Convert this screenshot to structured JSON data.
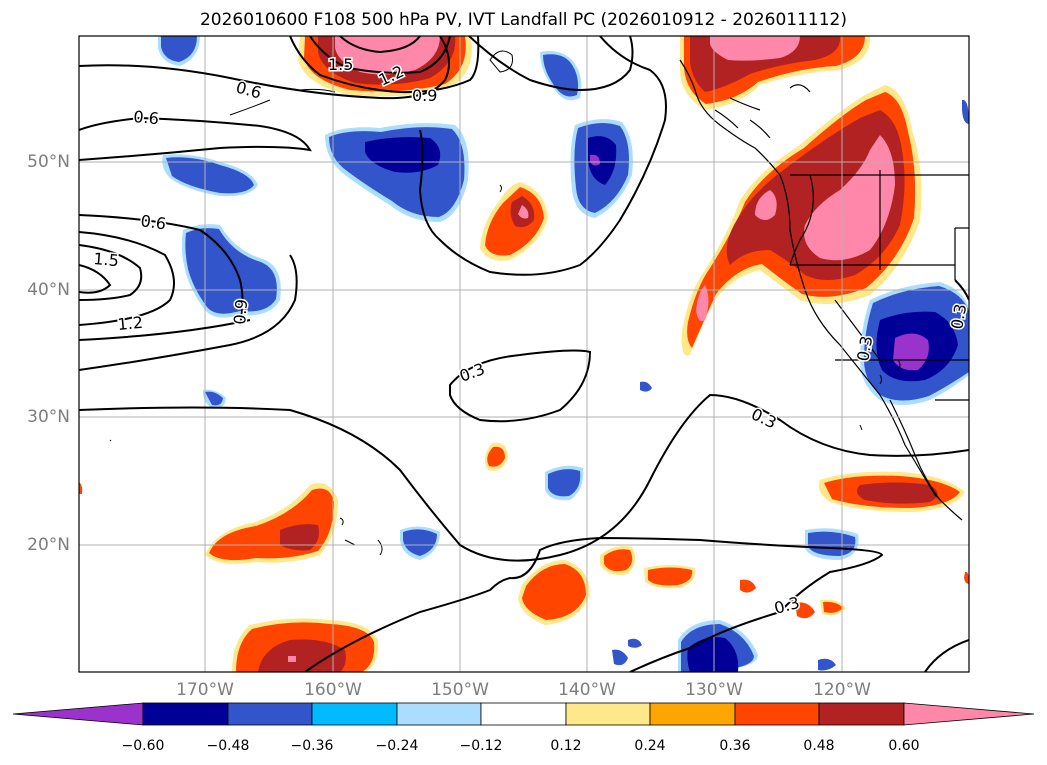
{
  "title": "2026010600 F108 500 hPa PV, IVT Landfall PC (2026010912 - 2026011112)",
  "longitude_labels": [
    "170°W",
    "160°W",
    "150°W",
    "140°W",
    "130°W",
    "120°W"
  ],
  "latitude_labels": [
    "50°N",
    "40°N",
    "30°N",
    "20°N"
  ],
  "colorbar": {
    "tick_labels": [
      "−0.60",
      "−0.48",
      "−0.36",
      "−0.24",
      "−0.12",
      "0.12",
      "0.24",
      "0.36",
      "0.48",
      "0.60"
    ],
    "colors": [
      "#9933cc",
      "#000099",
      "#3355cc",
      "#00bbff",
      "#aaddff",
      "#ffffff",
      "#ffe88a",
      "#ffa500",
      "#ff4500",
      "#b22222",
      "#ff88aa"
    ]
  },
  "contour_labels": [
    "1.5",
    "1.2",
    "0.6",
    "0.9",
    "0.6",
    "0.6",
    "1.5",
    "1.2",
    "0.9",
    "0.3",
    "0.3",
    "0.3",
    "0.3",
    "0.3"
  ],
  "colors": {
    "land_line": "#000000",
    "grid": "#b0b0b0",
    "contour": "#000000"
  }
}
